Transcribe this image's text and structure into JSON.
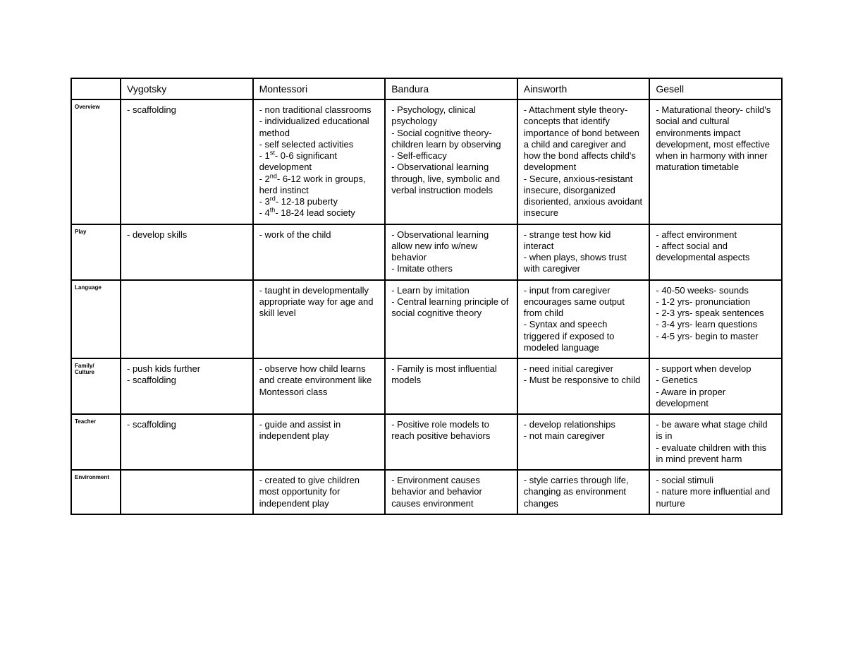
{
  "table": {
    "border_color": "#000000",
    "background_color": "#ffffff",
    "header_fontsize": 14,
    "rowlabel_fontsize": 8,
    "cell_fontsize": 13,
    "columns": [
      "Vygotsky",
      "Montessori",
      "Bandura",
      "Ainsworth",
      "Gesell"
    ],
    "rows": [
      {
        "label": "Overview",
        "cells": [
          [
            "- scaffolding"
          ],
          [
            "- non traditional classrooms",
            "- individualized educational method",
            "- self selected activities",
            "- 1<sup>st</sup>- 0-6 significant development",
            "- 2<sup>nd</sup>- 6-12 work in groups, herd instinct",
            "- 3<sup>rd</sup>- 12-18 puberty",
            "- 4<sup>th</sup>- 18-24 lead society"
          ],
          [
            "- Psychology, clinical psychology",
            "- Social cognitive theory- children learn by observing",
            "- Self-efficacy",
            "- Observational learning through, live, symbolic and verbal instruction models"
          ],
          [
            "- Attachment style theory- concepts that identify importance of bond between a child and caregiver and how the bond affects child's development",
            "- Secure, anxious-resistant insecure, disorganized disoriented, anxious avoidant insecure"
          ],
          [
            "- Maturational theory- child's social and cultural environments impact development, most effective when in harmony with inner maturation timetable"
          ]
        ]
      },
      {
        "label": "Play",
        "cells": [
          [
            "- develop skills"
          ],
          [
            "- work of the child"
          ],
          [
            "- Observational learning allow new info w/new behavior",
            "- Imitate others"
          ],
          [
            "- strange test how kid interact",
            "- when plays, shows trust with caregiver"
          ],
          [
            "- affect environment",
            "- affect social and developmental aspects"
          ]
        ]
      },
      {
        "label": "Language",
        "cells": [
          [],
          [
            "- taught in developmentally appropriate way for age and skill level"
          ],
          [
            "- Learn by imitation",
            "- Central learning principle of social cognitive theory"
          ],
          [
            "- input from caregiver encourages same output from child",
            "- Syntax and speech triggered if exposed to modeled language"
          ],
          [
            "- 40-50 weeks- sounds",
            "- 1-2 yrs- pronunciation",
            "- 2-3 yrs- speak sentences",
            "- 3-4 yrs- learn questions",
            "- 4-5 yrs- begin to master"
          ]
        ]
      },
      {
        "label": "Family/\nCulture",
        "cells": [
          [
            "- push kids further",
            "- scaffolding"
          ],
          [
            "- observe how child learns and create environment like Montessori class"
          ],
          [
            "- Family is most influential models"
          ],
          [
            "- need initial caregiver",
            "- Must be responsive to child"
          ],
          [
            "- support when develop",
            "- Genetics",
            "- Aware in proper development"
          ]
        ]
      },
      {
        "label": "Teacher",
        "cells": [
          [
            "- scaffolding"
          ],
          [
            "- guide and assist in independent play"
          ],
          [
            "- Positive role models to reach positive behaviors"
          ],
          [
            "- develop relationships",
            "- not main caregiver"
          ],
          [
            "- be aware what stage child is in",
            "- evaluate children with this in mind prevent harm"
          ]
        ]
      },
      {
        "label": "Environment",
        "cells": [
          [],
          [
            "- created to give children most opportunity for independent play"
          ],
          [
            "- Environment causes behavior and behavior causes environment"
          ],
          [
            "- style carries through life, changing as environment changes"
          ],
          [
            "- social stimuli",
            "- nature more influential and nurture"
          ]
        ]
      }
    ]
  }
}
